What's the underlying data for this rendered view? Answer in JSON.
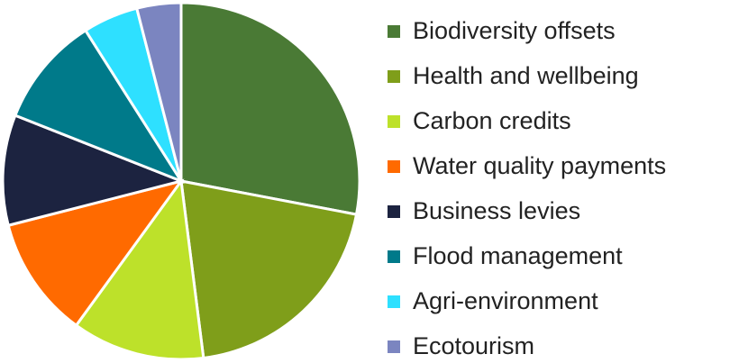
{
  "chart_data": {
    "type": "pie",
    "categories": [
      "Biodiversity offsets",
      "Health and wellbeing",
      "Carbon credits",
      "Water quality payments",
      "Business levies",
      "Flood management",
      "Agri-environment",
      "Ecotourism"
    ],
    "values": [
      28,
      20,
      12,
      11,
      10,
      10,
      5,
      4
    ],
    "colors": [
      "#4a7a35",
      "#7f9e1a",
      "#bde12a",
      "#ff6a00",
      "#1c2340",
      "#007a8a",
      "#2ee0ff",
      "#7b85c0"
    ],
    "legend": "right"
  }
}
